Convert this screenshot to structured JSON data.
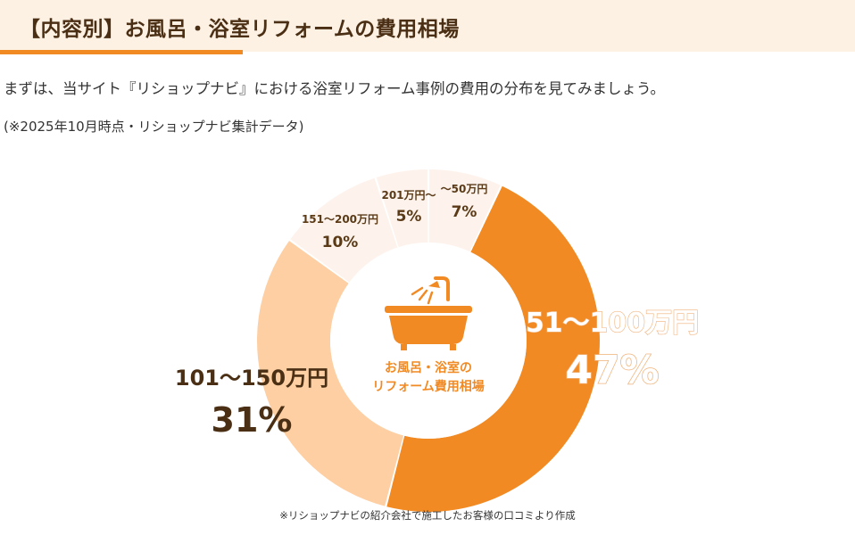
{
  "header": {
    "title": "【内容別】お風呂・浴室リフォームの費用相場"
  },
  "intro": {
    "text": "まずは、当サイト『リショップナビ』における浴室リフォーム事例の費用の分布を見てみましょう。",
    "note": "(※2025年10月時点・リショップナビ集計データ)"
  },
  "chart_data": {
    "type": "pie",
    "variant": "donut",
    "center_label": [
      "お風呂・浴室の",
      "リフォーム費用相場"
    ],
    "center_icon": "bathtub-icon",
    "slices": [
      {
        "label": "〜50万円",
        "value": 7,
        "display": "7%",
        "color": "#fdf3ec"
      },
      {
        "label": "51〜100万円",
        "value": 47,
        "display": "47%",
        "color": "#f28a23"
      },
      {
        "label": "101〜150万円",
        "value": 31,
        "display": "31%",
        "color": "#fdcfa3"
      },
      {
        "label": "151〜200万円",
        "value": 10,
        "display": "10%",
        "color": "#fdf3ec"
      },
      {
        "label": "201万円〜",
        "value": 5,
        "display": "5%",
        "color": "#fdf3ec"
      }
    ],
    "colors": {
      "accent": "#f28a23",
      "text_dark": "#5a3a17",
      "icon": "#f28a23"
    }
  },
  "footnote": "※リショップナビの紹介会社で施工したお客様の口コミより作成"
}
